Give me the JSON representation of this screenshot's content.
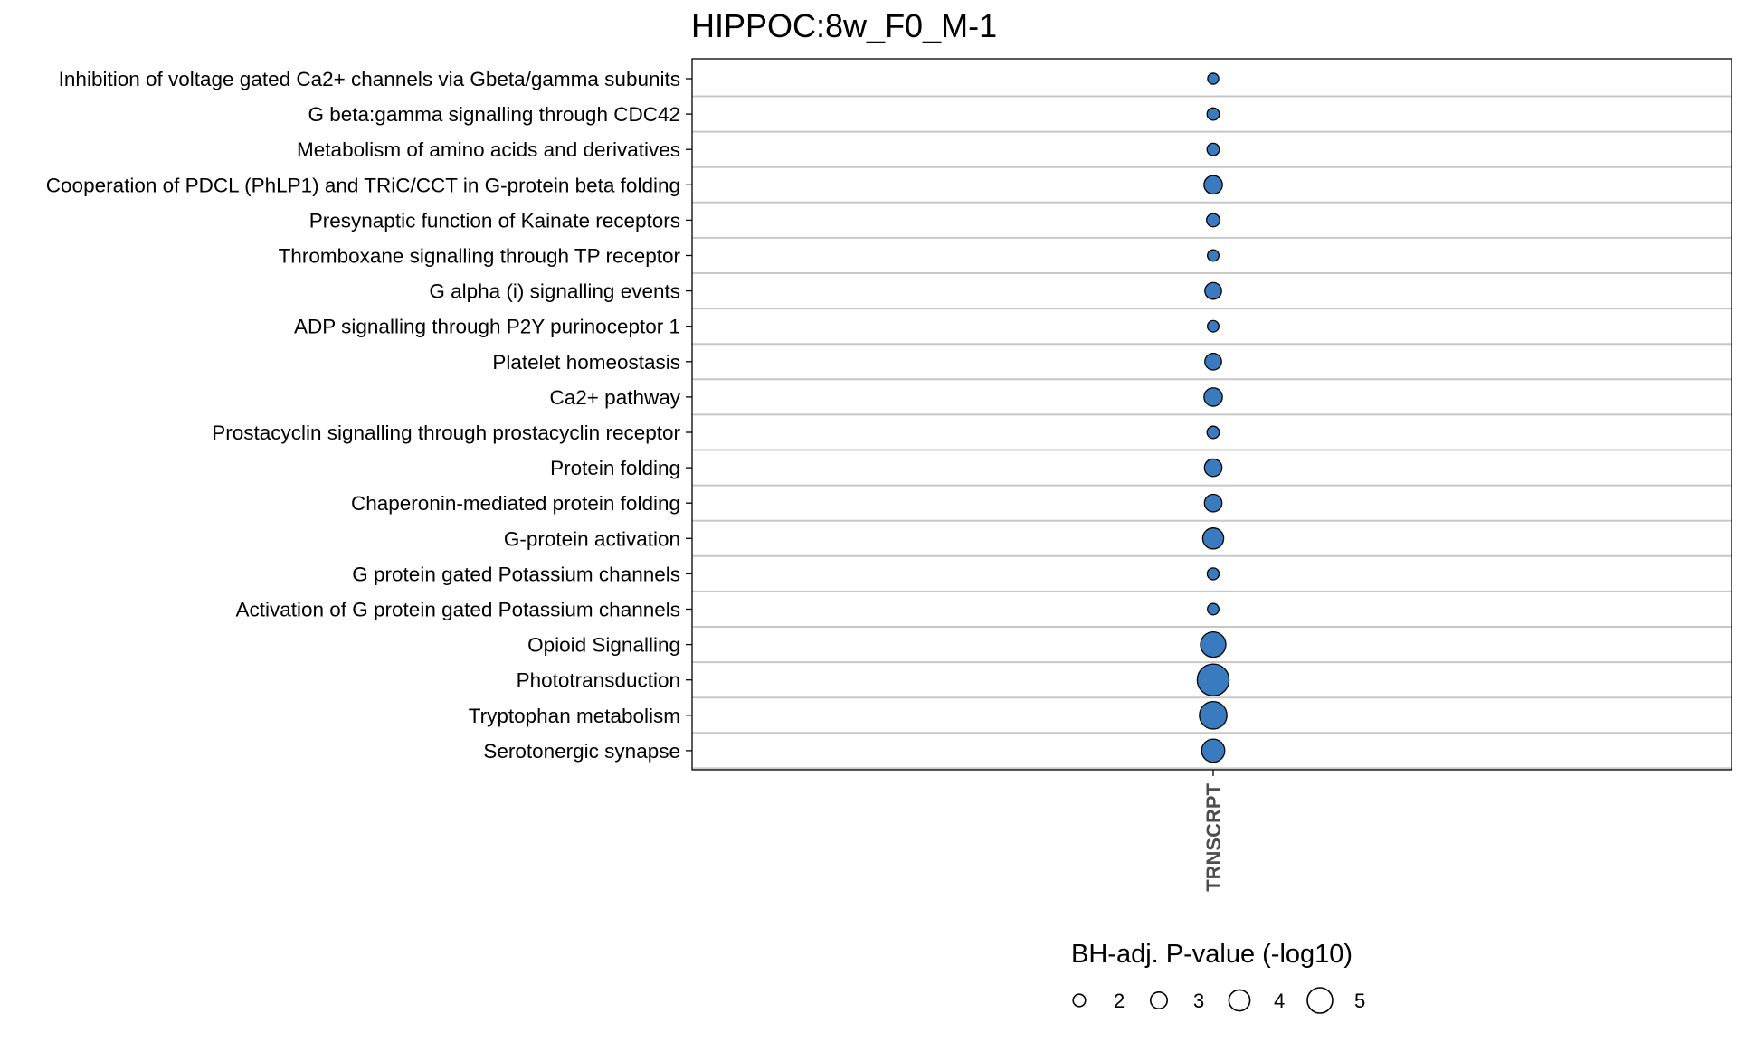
{
  "chart_data": {
    "type": "scatter",
    "title": "HIPPOC:8w_F0_M-1",
    "x_categories": [
      "TRNSCRPT"
    ],
    "y_categories": [
      "Inhibition  of voltage gated Ca2+ channels via Gbeta/gamma subunits",
      "G beta:gamma signalling through CDC42",
      "Metabolism of amino acids and derivatives",
      "Cooperation of PDCL (PhLP1) and TRiC/CCT in G-protein beta folding",
      "Presynaptic function of Kainate receptors",
      "Thromboxane signalling through TP receptor",
      "G alpha (i) signalling events",
      "ADP signalling through P2Y purinoceptor 1",
      "Platelet homeostasis",
      "Ca2+ pathway",
      "Prostacyclin signalling through prostacyclin receptor",
      "Protein folding",
      "Chaperonin-mediated protein folding",
      "G-protein activation",
      "G protein gated Potassium channels",
      "Activation of G protein gated Potassium channels",
      "Opioid Signalling",
      "Phototransduction",
      "Tryptophan metabolism",
      "Serotonergic synapse"
    ],
    "points": [
      {
        "x": "TRNSCRPT",
        "y": "Inhibition  of voltage gated Ca2+ channels via Gbeta/gamma subunits",
        "size": 1.7
      },
      {
        "x": "TRNSCRPT",
        "y": "G beta:gamma signalling through CDC42",
        "size": 2.0
      },
      {
        "x": "TRNSCRPT",
        "y": "Metabolism of amino acids and derivatives",
        "size": 2.0
      },
      {
        "x": "TRNSCRPT",
        "y": "Cooperation of PDCL (PhLP1) and TRiC/CCT in G-protein beta folding",
        "size": 3.4
      },
      {
        "x": "TRNSCRPT",
        "y": "Presynaptic function of Kainate receptors",
        "size": 2.2
      },
      {
        "x": "TRNSCRPT",
        "y": "Thromboxane signalling through TP receptor",
        "size": 1.8
      },
      {
        "x": "TRNSCRPT",
        "y": "G alpha (i) signalling events",
        "size": 3.0
      },
      {
        "x": "TRNSCRPT",
        "y": "ADP signalling through P2Y purinoceptor 1",
        "size": 1.8
      },
      {
        "x": "TRNSCRPT",
        "y": "Platelet homeostasis",
        "size": 3.0
      },
      {
        "x": "TRNSCRPT",
        "y": "Ca2+ pathway",
        "size": 3.4
      },
      {
        "x": "TRNSCRPT",
        "y": "Prostacyclin signalling through prostacyclin receptor",
        "size": 2.0
      },
      {
        "x": "TRNSCRPT",
        "y": "Protein folding",
        "size": 3.2
      },
      {
        "x": "TRNSCRPT",
        "y": "Chaperonin-mediated protein folding",
        "size": 3.2
      },
      {
        "x": "TRNSCRPT",
        "y": "G-protein activation",
        "size": 4.0
      },
      {
        "x": "TRNSCRPT",
        "y": "G protein gated Potassium channels",
        "size": 1.9
      },
      {
        "x": "TRNSCRPT",
        "y": "Activation of G protein gated Potassium channels",
        "size": 1.8
      },
      {
        "x": "TRNSCRPT",
        "y": "Opioid Signalling",
        "size": 5.0
      },
      {
        "x": "TRNSCRPT",
        "y": "Phototransduction",
        "size": 6.5
      },
      {
        "x": "TRNSCRPT",
        "y": "Tryptophan metabolism",
        "size": 5.5
      },
      {
        "x": "TRNSCRPT",
        "y": "Serotonergic synapse",
        "size": 4.5
      }
    ],
    "size_legend": {
      "title": "BH-adj. P-value (-log10)",
      "values": [
        2,
        3,
        4,
        5
      ],
      "labels": [
        "2",
        "3",
        "4",
        "5"
      ],
      "placement": "bottom"
    },
    "point_color": "#3a7bbf",
    "grid": "horizontal",
    "gridline_color": "#c8c8c8"
  }
}
